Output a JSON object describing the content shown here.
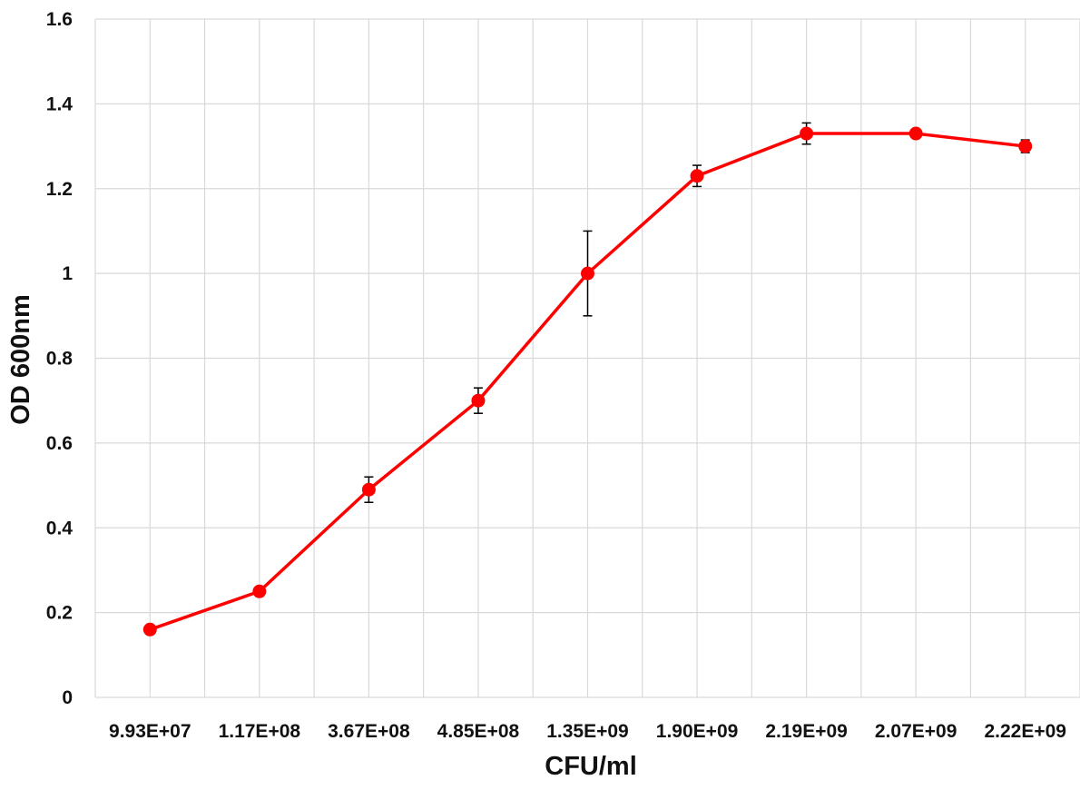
{
  "chart_data": {
    "type": "line",
    "title": "",
    "xlabel": "CFU/ml",
    "ylabel": "OD 600nm",
    "categories": [
      "9.93E+07",
      "1.17E+08",
      "3.67E+08",
      "4.85E+08",
      "1.35E+09",
      "1.90E+09",
      "2.19E+09",
      "2.07E+09",
      "2.22E+09"
    ],
    "series": [
      {
        "values": [
          0.16,
          0.25,
          0.49,
          0.7,
          1.0,
          1.23,
          1.33,
          1.33,
          1.3
        ],
        "errors": [
          0.0,
          0.0,
          0.03,
          0.03,
          0.1,
          0.025,
          0.025,
          0.01,
          0.015
        ],
        "color": "#ff0000"
      }
    ],
    "ylim": [
      0,
      1.6
    ],
    "yticks": [
      "0",
      "0.2",
      "0.4",
      "0.6",
      "0.8",
      "1",
      "1.2",
      "1.4",
      "1.6"
    ],
    "grid": true,
    "legend": "none",
    "colors": {
      "line": "#ff0000",
      "marker": "#ff0000",
      "error_bar": "#000000",
      "grid": "#d9d9d9"
    }
  }
}
